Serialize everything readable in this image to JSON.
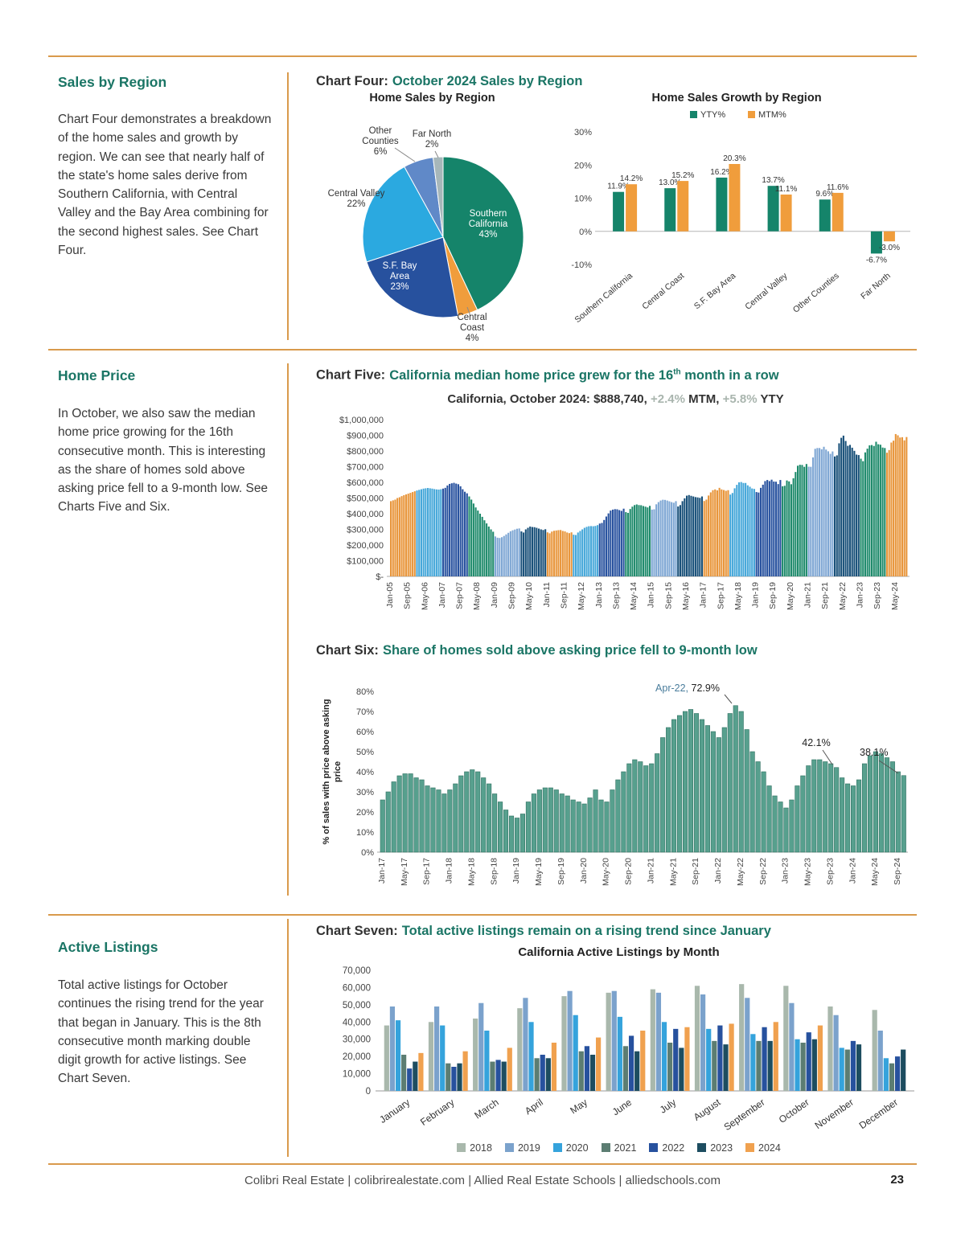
{
  "page": {
    "footer": "Colibri Real Estate | colibrirealestate.com | Allied Real Estate Schools | alliedschools.com",
    "page_number": "23"
  },
  "sections": {
    "sales": {
      "heading": "Sales by Region",
      "body": "Chart Four demonstrates a breakdown of the home sales and growth by region. We can see that nearly half of the state's home sales derive from Southern California, with Central Valley and the Bay Area combining for the second highest sales. See Chart Four.",
      "chart_label": "Chart Four:",
      "chart_title": "October 2024 Sales by Region"
    },
    "home_price": {
      "heading": "Home Price",
      "body": "In October, we also saw the median home price growing for the 16th consecutive month. This is interesting as the share of homes sold above asking price fell to a 9-month low. See Charts Five and Six.",
      "chart5_label": "Chart Five:",
      "chart5_title_pre": "California median home price grew for the 16",
      "chart5_title_sup": "th",
      "chart5_title_post": " month in a row",
      "chart6_label": "Chart Six:",
      "chart6_title": "Share of homes sold above asking price fell to 9-month low"
    },
    "active": {
      "heading": "Active Listings",
      "body": "Total active listings for October continues the rising trend for the year that began in January. This is the 8th consecutive month marking double digit growth for active listings. See Chart Seven.",
      "chart_label": "Chart Seven:",
      "chart_title": "Total active listings remain on a rising trend since January"
    }
  },
  "chart_data": [
    {
      "id": "sales_pie",
      "type": "pie",
      "title": "Home Sales by Region",
      "slices": [
        {
          "label": "Southern California",
          "value": 43,
          "color": "#15846a",
          "label_lines": [
            "Southern",
            "California",
            "43%"
          ]
        },
        {
          "label": "Central Coast",
          "value": 4,
          "color": "#f09d3c",
          "label_lines": [
            "Central",
            "Coast",
            "4%"
          ]
        },
        {
          "label": "S.F. Bay Area",
          "value": 23,
          "color": "#27519e",
          "label_lines": [
            "S.F. Bay",
            "Area",
            "23%"
          ]
        },
        {
          "label": "Central Valley",
          "value": 22,
          "color": "#2ba9e0",
          "label_lines": [
            "Central Valley",
            "22%"
          ]
        },
        {
          "label": "Other Counties",
          "value": 6,
          "color": "#6089c8",
          "label_lines": [
            "Other",
            "Counties",
            "6%"
          ]
        },
        {
          "label": "Far North",
          "value": 2,
          "color": "#a7b7ba",
          "label_lines": [
            "Far North",
            "2%"
          ]
        }
      ]
    },
    {
      "id": "growth_bars",
      "type": "bar",
      "title": "Home Sales Growth by Region",
      "categories": [
        "Southern California",
        "Central Coast",
        "S.F. Bay Area",
        "Central Valley",
        "Other Counties",
        "Far North"
      ],
      "series": [
        {
          "name": "YTY%",
          "color": "#15846a",
          "values": [
            11.9,
            13.0,
            16.2,
            13.7,
            9.6,
            -6.7
          ]
        },
        {
          "name": "MTM%",
          "color": "#f09d3c",
          "values": [
            14.2,
            15.2,
            20.3,
            11.1,
            11.6,
            -3.0
          ]
        }
      ],
      "ylim": [
        -10,
        30
      ],
      "yticks": [
        "30%",
        "20%",
        "10%",
        "0%",
        "-10%"
      ],
      "legend_position": "top"
    },
    {
      "id": "median_price",
      "type": "bar",
      "title": "California, October 2024: $888,740, +2.4% MTM, +5.8% YTY",
      "subtitle": {
        "p1": "California, October 2024: $888,740, ",
        "p2": "+2.4%",
        "p3": " MTM, ",
        "p4": "+5.8%",
        "p5": " YTY"
      },
      "start": "Jan-05",
      "end": "Oct-24",
      "start_year": 2005,
      "unit": "USD (values in thousands)",
      "ylim": [
        0,
        1000000
      ],
      "xtick_every": 8,
      "values_thousands": [
        480,
        485,
        490,
        500,
        505,
        512,
        518,
        523,
        528,
        533,
        538,
        543,
        548,
        552,
        556,
        560,
        562,
        564,
        562,
        560,
        557,
        555,
        554,
        556,
        560,
        565,
        580,
        590,
        594,
        597,
        592,
        588,
        575,
        556,
        540,
        530,
        510,
        490,
        465,
        440,
        420,
        400,
        380,
        358,
        338,
        318,
        300,
        285,
        255,
        247,
        245,
        250,
        258,
        268,
        278,
        288,
        294,
        299,
        304,
        306,
        287,
        280,
        300,
        310,
        318,
        315,
        314,
        310,
        305,
        300,
        296,
        301,
        281,
        275,
        286,
        291,
        293,
        295,
        296,
        290,
        287,
        280,
        276,
        281,
        266,
        264,
        280,
        290,
        300,
        310,
        316,
        320,
        321,
        320,
        322,
        327,
        337,
        341,
        360,
        382,
        402,
        420,
        426,
        429,
        428,
        423,
        418,
        432,
        410,
        405,
        430,
        445,
        455,
        459,
        455,
        454,
        449,
        445,
        440,
        450,
        426,
        428,
        460,
        474,
        484,
        489,
        488,
        484,
        479,
        474,
        470,
        480,
        446,
        455,
        480,
        498,
        515,
        519,
        514,
        510,
        506,
        504,
        501,
        510,
        481,
        490,
        516,
        536,
        550,
        555,
        549,
        565,
        555,
        551,
        546,
        550,
        522,
        532,
        562,
        584,
        600,
        602,
        596,
        596,
        581,
        572,
        561,
        558,
        538,
        535,
        565,
        585,
        608,
        615,
        608,
        617,
        605,
        604,
        589,
        615,
        575,
        578,
        612,
        606,
        588,
        626,
        666,
        706,
        712,
        711,
        699,
        717,
        700,
        699,
        759,
        814,
        819,
        819,
        811,
        827,
        809,
        798,
        782,
        797,
        765,
        772,
        849,
        884,
        898,
        864,
        833,
        839,
        821,
        801,
        777,
        774,
        751,
        735,
        791,
        815,
        836,
        838,
        832,
        859,
        843,
        840,
        822,
        819,
        789,
        806,
        854,
        866,
        908,
        900,
        886,
        888,
        868,
        889
      ],
      "year_colors": [
        "#e8953a",
        "#45a7d9",
        "#27519e",
        "#1e8a6b",
        "#7fa7d4",
        "#174f78",
        "#e8953a",
        "#45a7d9",
        "#27519e",
        "#1e8a6b",
        "#7fa7d4",
        "#174f78",
        "#e8953a",
        "#45a7d9",
        "#27519e",
        "#1e8a6b",
        "#7fa7d4",
        "#174f78",
        "#1e8a6b",
        "#e8953a"
      ]
    },
    {
      "id": "above_asking",
      "type": "bar",
      "ylabel_lines": [
        "% of sales with price above asking",
        "price"
      ],
      "start": "Jan-17",
      "end": "Oct-24",
      "start_year": 2017,
      "ylim": [
        0,
        80
      ],
      "xtick_every": 4,
      "bar_color": "#57a08e",
      "bar_stroke": "#2f7061",
      "values_pct": [
        26,
        30,
        35,
        38,
        39,
        39,
        37,
        36,
        33,
        32,
        31,
        29,
        31,
        34,
        38,
        40,
        41,
        40,
        37,
        34,
        29,
        25,
        21,
        18,
        17,
        19,
        25,
        29,
        31,
        32,
        32,
        31,
        29,
        28,
        26,
        25,
        24,
        27,
        31,
        26,
        25,
        31,
        36,
        40,
        44,
        46,
        45,
        43,
        44,
        49,
        57,
        62,
        66,
        68,
        70,
        71,
        69,
        66,
        63,
        60,
        57,
        62,
        69,
        72.9,
        70,
        61,
        50,
        45,
        40,
        33,
        28,
        25,
        22,
        26,
        33,
        38,
        43,
        46,
        46,
        45,
        44,
        42.1,
        37,
        34,
        33,
        36,
        44,
        48,
        50,
        49,
        47,
        45,
        40,
        38.1
      ],
      "annotations": [
        {
          "t1": "Apr-22,",
          "t2": " 72.9%",
          "index": 63
        },
        {
          "label": "42.1%",
          "index": 81
        },
        {
          "label": "38.1%",
          "index": 93
        }
      ]
    },
    {
      "id": "active_listings",
      "type": "bar",
      "title": "California Active Listings by Month",
      "ylim": [
        0,
        70000
      ],
      "categories": [
        "January",
        "February",
        "March",
        "April",
        "May",
        "June",
        "July",
        "August",
        "September",
        "October",
        "November",
        "December"
      ],
      "series": [
        {
          "name": "2018",
          "color": "#a9b8ac",
          "values": [
            38000,
            40000,
            42000,
            48000,
            55000,
            57000,
            59000,
            61000,
            62000,
            61000,
            49000,
            47000
          ]
        },
        {
          "name": "2019",
          "color": "#7ba2cc",
          "values": [
            49000,
            49000,
            51000,
            54000,
            58000,
            58000,
            57000,
            56000,
            54000,
            51000,
            44000,
            35000
          ]
        },
        {
          "name": "2020",
          "color": "#35a3dc",
          "values": [
            41000,
            38000,
            35000,
            40000,
            44000,
            43000,
            40000,
            36000,
            33000,
            30000,
            25000,
            19000
          ]
        },
        {
          "name": "2021",
          "color": "#5c7d72",
          "values": [
            21000,
            16000,
            17000,
            19000,
            23000,
            26000,
            28000,
            29000,
            29000,
            28000,
            24000,
            16000
          ]
        },
        {
          "name": "2022",
          "color": "#27519e",
          "values": [
            13000,
            14000,
            18000,
            21000,
            26000,
            32000,
            36000,
            38000,
            37000,
            34000,
            29000,
            20000
          ]
        },
        {
          "name": "2023",
          "color": "#1d4d60",
          "values": [
            17000,
            16000,
            17000,
            19000,
            21000,
            23000,
            25000,
            27000,
            29000,
            30000,
            27000,
            24000
          ]
        },
        {
          "name": "2024",
          "color": "#f0a14f",
          "values": [
            22000,
            23000,
            25000,
            28000,
            31000,
            35000,
            37000,
            39000,
            40000,
            38000,
            null,
            null
          ]
        }
      ]
    }
  ]
}
